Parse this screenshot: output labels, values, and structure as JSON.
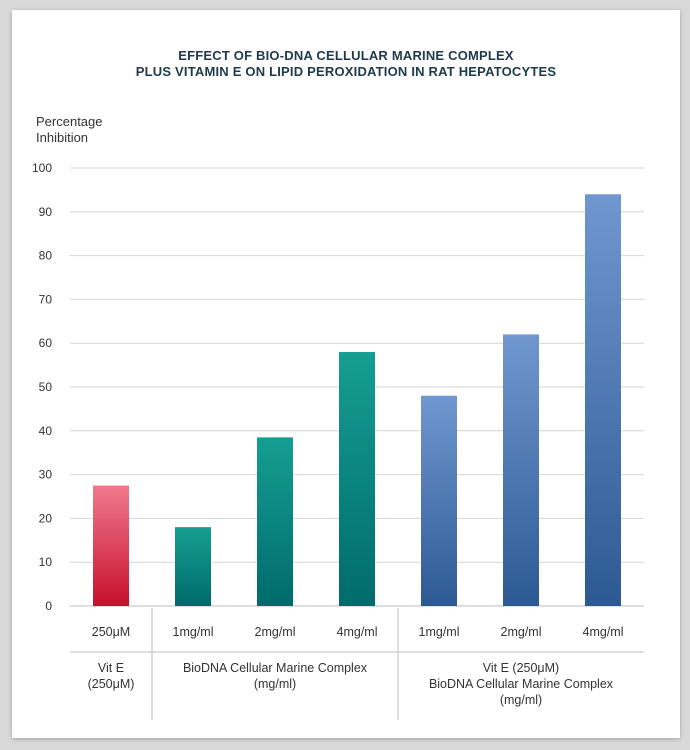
{
  "chart_data": {
    "type": "bar",
    "title": [
      "EFFECT OF BIO-DNA CELLULAR MARINE COMPLEX",
      "PLUS VITAMIN E ON LIPID PEROXIDATION IN RAT HEPATOCYTES"
    ],
    "ylabel": [
      "Percentage",
      "Inhibition"
    ],
    "xlabel": "",
    "ylim": [
      0,
      100
    ],
    "yticks": [
      0,
      10,
      20,
      30,
      40,
      50,
      60,
      70,
      80,
      90,
      100
    ],
    "grid": true,
    "categories": [
      "250μM",
      "1mg/ml",
      "2mg/ml",
      "4mg/ml",
      "1mg/ml",
      "2mg/ml",
      "4mg/ml"
    ],
    "values": [
      27.5,
      18,
      38.5,
      58,
      48,
      62,
      94
    ],
    "bar_colors": [
      [
        "#f07a8c",
        "#c8102e"
      ],
      [
        "#159e92",
        "#006b6b"
      ],
      [
        "#159e92",
        "#006b6b"
      ],
      [
        "#159e92",
        "#006b6b"
      ],
      [
        "#7097cf",
        "#2d5993"
      ],
      [
        "#7097cf",
        "#2d5993"
      ],
      [
        "#7097cf",
        "#2d5993"
      ]
    ],
    "groups": [
      {
        "label": [
          "Vit E",
          "(250μM)"
        ],
        "span": [
          0,
          0
        ]
      },
      {
        "label": [
          "BioDNA Cellular Marine Complex",
          "(mg/ml)"
        ],
        "span": [
          1,
          3
        ]
      },
      {
        "label": [
          "Vit E (250μM)",
          "BioDNA Cellular Marine Complex",
          "(mg/ml)"
        ],
        "span": [
          4,
          6
        ]
      }
    ]
  }
}
